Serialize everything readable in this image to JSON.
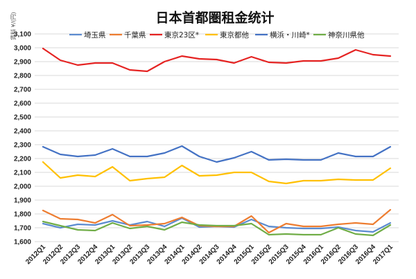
{
  "chart_data": {
    "type": "line",
    "title": "日本首都圏租金统计",
    "ylabel": "賃料 ¥/(円)",
    "xlabel": "",
    "ylim": [
      1600,
      3100
    ],
    "yticks": [
      1600,
      1700,
      1800,
      1900,
      2000,
      2100,
      2200,
      2300,
      2400,
      2500,
      2600,
      2700,
      2800,
      2900,
      3000,
      3100
    ],
    "ytick_labels": [
      "1,600",
      "1,700",
      "1,800",
      "1,900",
      "2,000",
      "2,100",
      "2,200",
      "2,300",
      "2,400",
      "2,500",
      "2,600",
      "2,700",
      "2,800",
      "2,900",
      "3,000",
      "3,100"
    ],
    "grid": true,
    "legend_position": "top",
    "categories": [
      "2012Q1",
      "2012Q2",
      "2012Q3",
      "2012Q4",
      "2013Q1",
      "2013Q2",
      "2013Q3",
      "2013Q4",
      "2014Q1",
      "2014Q2",
      "2014Q3",
      "2014Q4",
      "2015Q1",
      "2015Q2",
      "2015Q3",
      "2015Q4",
      "2016Q1",
      "2016Q2",
      "2016Q3",
      "2016Q4",
      "2017Q1"
    ],
    "series": [
      {
        "name": "埼玉県",
        "color": "#5b8bd0",
        "values": [
          1730,
          1700,
          1725,
          1720,
          1750,
          1720,
          1745,
          1710,
          1770,
          1705,
          1710,
          1705,
          1760,
          1710,
          1700,
          1695,
          1695,
          1705,
          1680,
          1670,
          1735
        ]
      },
      {
        "name": "千葉県",
        "color": "#ed7d31",
        "values": [
          1825,
          1765,
          1760,
          1735,
          1795,
          1715,
          1720,
          1730,
          1775,
          1715,
          1710,
          1710,
          1785,
          1665,
          1730,
          1710,
          1710,
          1725,
          1735,
          1725,
          1830
        ]
      },
      {
        "name": "東京23区*",
        "color": "#e52322",
        "values": [
          2995,
          2910,
          2875,
          2890,
          2890,
          2840,
          2830,
          2900,
          2940,
          2920,
          2915,
          2890,
          2935,
          2895,
          2890,
          2905,
          2905,
          2925,
          2985,
          2950,
          2940
        ]
      },
      {
        "name": "東京都他",
        "color": "#ffc000",
        "values": [
          2175,
          2060,
          2080,
          2070,
          2140,
          2040,
          2055,
          2065,
          2150,
          2075,
          2080,
          2100,
          2100,
          2035,
          2020,
          2040,
          2040,
          2050,
          2045,
          2045,
          2130
        ]
      },
      {
        "name": "横浜・川崎*",
        "color": "#4472c4",
        "values": [
          2285,
          2230,
          2215,
          2225,
          2270,
          2215,
          2215,
          2240,
          2290,
          2215,
          2175,
          2205,
          2250,
          2190,
          2195,
          2190,
          2190,
          2240,
          2215,
          2215,
          2285
        ]
      },
      {
        "name": "神奈川県他",
        "color": "#70ad47",
        "values": [
          1745,
          1715,
          1685,
          1680,
          1735,
          1695,
          1710,
          1685,
          1740,
          1720,
          1715,
          1715,
          1730,
          1650,
          1655,
          1650,
          1650,
          1700,
          1655,
          1645,
          1720
        ]
      }
    ]
  }
}
